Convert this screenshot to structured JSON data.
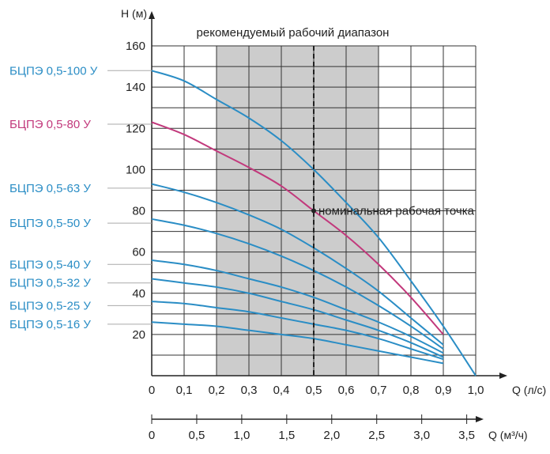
{
  "chart_data": {
    "type": "line",
    "xlabel": "Q (л/с)",
    "ylabel": "H (м)",
    "xlim": [
      0,
      1.0
    ],
    "ylim": [
      0,
      160
    ],
    "x_ticks": [
      "0",
      "0,1",
      "0,2",
      "0,3",
      "0,4",
      "0,5",
      "0,6",
      "0,7",
      "0,8",
      "0,9",
      "1,0"
    ],
    "y_ticks": [
      "20",
      "40",
      "60",
      "80",
      "100",
      "120",
      "140",
      "160"
    ],
    "secondary_axis": {
      "label": "Q (м³/ч)",
      "max": 3.6,
      "ticks": [
        {
          "value": 0,
          "label": "0"
        },
        {
          "value": 0.5,
          "label": "0,5"
        },
        {
          "value": 1.0,
          "label": "1,0"
        },
        {
          "value": 1.5,
          "label": "1,5"
        },
        {
          "value": 2.0,
          "label": "2,0"
        },
        {
          "value": 2.5,
          "label": "2,5"
        },
        {
          "value": 3.0,
          "label": "3,0"
        },
        {
          "value": 3.5,
          "label": "3,5"
        }
      ]
    },
    "recommended_range": {
      "label": "рекомендуемый рабочий диапазон",
      "from": 0.2,
      "to": 0.7
    },
    "nominal_point": {
      "label": "номинальная рабочая точка",
      "x": 0.5,
      "y": 80
    },
    "series": [
      {
        "name": "БЦПЭ 0,5-100 У",
        "color": "#2a8dc5",
        "label_y": 148,
        "x": [
          0,
          0.1,
          0.2,
          0.3,
          0.4,
          0.5,
          0.6,
          0.7,
          0.8,
          0.9,
          1.0
        ],
        "y": [
          148,
          143,
          134,
          125,
          114,
          100,
          84,
          67,
          46,
          24,
          0
        ]
      },
      {
        "name": "БЦПЭ 0,5-80 У",
        "color": "#c2397c",
        "label_y": 122,
        "x": [
          0,
          0.1,
          0.2,
          0.3,
          0.4,
          0.5,
          0.6,
          0.7,
          0.8,
          0.9
        ],
        "y": [
          123,
          117,
          109,
          101,
          92,
          80,
          68,
          54,
          38,
          20
        ]
      },
      {
        "name": "БЦПЭ 0,5-63 У",
        "color": "#2a8dc5",
        "label_y": 91,
        "x": [
          0,
          0.1,
          0.2,
          0.3,
          0.4,
          0.5,
          0.6,
          0.7,
          0.8,
          0.9
        ],
        "y": [
          93,
          89,
          84,
          78,
          71,
          62,
          52,
          41,
          28,
          15
        ]
      },
      {
        "name": "БЦПЭ 0,5-50 У",
        "color": "#2a8dc5",
        "label_y": 74,
        "x": [
          0,
          0.1,
          0.2,
          0.3,
          0.4,
          0.5,
          0.6,
          0.7,
          0.8,
          0.9
        ],
        "y": [
          76,
          73,
          69,
          64,
          58,
          51,
          43,
          34,
          24,
          13
        ]
      },
      {
        "name": "БЦПЭ 0,5-40 У",
        "color": "#2a8dc5",
        "label_y": 54,
        "x": [
          0,
          0.1,
          0.2,
          0.3,
          0.4,
          0.5,
          0.6,
          0.7,
          0.8,
          0.9
        ],
        "y": [
          56,
          54,
          51,
          47,
          43,
          38,
          32,
          26,
          19,
          11
        ]
      },
      {
        "name": "БЦПЭ 0,5-32 У",
        "color": "#2a8dc5",
        "label_y": 45,
        "x": [
          0,
          0.1,
          0.2,
          0.3,
          0.4,
          0.5,
          0.6,
          0.7,
          0.8,
          0.9
        ],
        "y": [
          47,
          45,
          43,
          40,
          36,
          32,
          27,
          22,
          16,
          9
        ]
      },
      {
        "name": "БЦПЭ 0,5-25 У",
        "color": "#2a8dc5",
        "label_y": 34,
        "x": [
          0,
          0.1,
          0.2,
          0.3,
          0.4,
          0.5,
          0.6,
          0.7,
          0.8,
          0.9
        ],
        "y": [
          36,
          35,
          33,
          31,
          28,
          25,
          22,
          18,
          13,
          8
        ]
      },
      {
        "name": "БЦПЭ 0,5-16 У",
        "color": "#2a8dc5",
        "label_y": 25,
        "x": [
          0,
          0.1,
          0.2,
          0.3,
          0.4,
          0.5,
          0.6,
          0.7,
          0.8,
          0.9
        ],
        "y": [
          26,
          25,
          24,
          22,
          20,
          18,
          15,
          12,
          9,
          6
        ]
      }
    ]
  }
}
